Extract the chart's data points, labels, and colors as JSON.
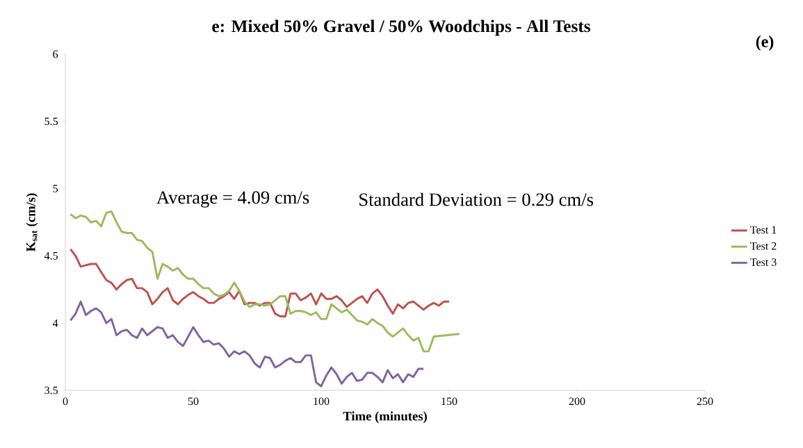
{
  "chart_data": {
    "type": "line",
    "title": "e: Mixed 50% Gravel / 50% Woodchips - All Tests",
    "xlabel": "Time (minutes)",
    "ylabel": "K$_{sat}$ (cm/s)",
    "annotations": [
      "Average = 4.09 cm/s",
      "Standard Deviation = 0.29 cm/s",
      "(e)"
    ],
    "xlim": [
      0,
      250
    ],
    "xticks": [
      0,
      50,
      100,
      150,
      200,
      250
    ],
    "ylim": [
      3.5,
      6
    ],
    "yticks": [
      3.5,
      4,
      4.5,
      5,
      5.5,
      6
    ],
    "grid": false,
    "legend": "right",
    "marker": "none",
    "line_style": "solid",
    "series": [
      {
        "name": "Test 1",
        "color": "#c0504d",
        "x": [
          2,
          4,
          6,
          8,
          10,
          12,
          14,
          16,
          18,
          20,
          22,
          24,
          26,
          28,
          30,
          32,
          34,
          36,
          38,
          40,
          42,
          44,
          46,
          48,
          50,
          52,
          54,
          56,
          58,
          60,
          62,
          64,
          66,
          68,
          70,
          72,
          74,
          76,
          78,
          80,
          82,
          84,
          86,
          88,
          90,
          92,
          94,
          96,
          98,
          100,
          102,
          104,
          106,
          108,
          110,
          112,
          114,
          116,
          118,
          120,
          122,
          124,
          126,
          128,
          130,
          132,
          134,
          136,
          138,
          140,
          142,
          144,
          146,
          148,
          150
        ],
        "values": [
          4.55,
          4.5,
          4.42,
          4.43,
          4.44,
          4.44,
          4.38,
          4.32,
          4.3,
          4.25,
          4.29,
          4.32,
          4.33,
          4.26,
          4.26,
          4.23,
          4.14,
          4.18,
          4.23,
          4.26,
          4.17,
          4.14,
          4.18,
          4.21,
          4.23,
          4.2,
          4.18,
          4.15,
          4.15,
          4.18,
          4.2,
          4.23,
          4.18,
          4.24,
          4.14,
          4.15,
          4.15,
          4.13,
          4.15,
          4.15,
          4.07,
          4.05,
          4.05,
          4.22,
          4.22,
          4.17,
          4.19,
          4.22,
          4.14,
          4.22,
          4.18,
          4.18,
          4.2,
          4.17,
          4.12,
          4.15,
          4.18,
          4.2,
          4.15,
          4.22,
          4.25,
          4.2,
          4.13,
          4.07,
          4.14,
          4.11,
          4.15,
          4.16,
          4.13,
          4.1,
          4.13,
          4.15,
          4.13,
          4.16,
          4.16
        ]
      },
      {
        "name": "Test 2",
        "color": "#9bbb59",
        "x": [
          2,
          4,
          6,
          8,
          10,
          12,
          14,
          16,
          18,
          20,
          22,
          24,
          26,
          28,
          30,
          32,
          34,
          36,
          38,
          40,
          42,
          44,
          46,
          48,
          50,
          52,
          54,
          56,
          58,
          60,
          62,
          64,
          66,
          68,
          70,
          72,
          74,
          76,
          78,
          80,
          82,
          84,
          86,
          88,
          90,
          92,
          94,
          96,
          98,
          100,
          102,
          104,
          106,
          108,
          110,
          112,
          114,
          116,
          118,
          120,
          122,
          124,
          126,
          128,
          130,
          132,
          134,
          136,
          138,
          140,
          142,
          144,
          154
        ],
        "values": [
          4.81,
          4.78,
          4.8,
          4.79,
          4.75,
          4.76,
          4.72,
          4.82,
          4.83,
          4.75,
          4.68,
          4.67,
          4.67,
          4.62,
          4.61,
          4.56,
          4.53,
          4.33,
          4.44,
          4.42,
          4.39,
          4.41,
          4.36,
          4.33,
          4.33,
          4.29,
          4.26,
          4.26,
          4.22,
          4.2,
          4.21,
          4.24,
          4.3,
          4.24,
          4.16,
          4.12,
          4.14,
          4.14,
          4.13,
          4.14,
          4.17,
          4.2,
          4.2,
          4.07,
          4.09,
          4.09,
          4.08,
          4.06,
          4.08,
          4.03,
          4.03,
          4.14,
          4.11,
          4.08,
          4.1,
          4.06,
          4.02,
          4.01,
          3.99,
          4.03,
          4.0,
          3.98,
          3.93,
          3.9,
          3.93,
          3.96,
          3.91,
          3.87,
          3.89,
          3.79,
          3.79,
          3.9,
          3.92
        ]
      },
      {
        "name": "Test 3",
        "color": "#8064a2",
        "x": [
          2,
          4,
          6,
          8,
          10,
          12,
          14,
          16,
          18,
          20,
          22,
          24,
          26,
          28,
          30,
          32,
          34,
          36,
          38,
          40,
          42,
          44,
          46,
          48,
          50,
          52,
          54,
          56,
          58,
          60,
          62,
          64,
          66,
          68,
          70,
          72,
          74,
          76,
          78,
          80,
          82,
          84,
          86,
          88,
          90,
          92,
          94,
          96,
          98,
          100,
          102,
          104,
          106,
          108,
          110,
          112,
          114,
          116,
          118,
          120,
          122,
          124,
          126,
          128,
          130,
          132,
          134,
          136,
          138,
          140
        ],
        "values": [
          4.02,
          4.07,
          4.16,
          4.06,
          4.09,
          4.11,
          4.08,
          4.0,
          4.03,
          3.91,
          3.94,
          3.95,
          3.91,
          3.89,
          3.96,
          3.91,
          3.94,
          3.97,
          3.96,
          3.89,
          3.91,
          3.86,
          3.83,
          3.9,
          3.97,
          3.91,
          3.86,
          3.87,
          3.84,
          3.85,
          3.81,
          3.75,
          3.79,
          3.77,
          3.79,
          3.76,
          3.7,
          3.67,
          3.75,
          3.74,
          3.67,
          3.69,
          3.72,
          3.74,
          3.71,
          3.71,
          3.76,
          3.76,
          3.56,
          3.53,
          3.61,
          3.67,
          3.62,
          3.55,
          3.6,
          3.63,
          3.57,
          3.58,
          3.63,
          3.63,
          3.6,
          3.56,
          3.65,
          3.59,
          3.62,
          3.56,
          3.62,
          3.6,
          3.66,
          3.66
        ]
      }
    ]
  }
}
